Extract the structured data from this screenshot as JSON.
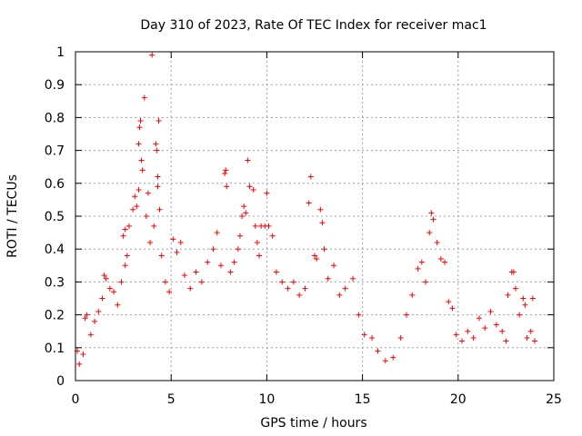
{
  "chart_data": {
    "type": "scatter",
    "title": "Day 310 of 2023, Rate Of TEC Index for receiver mac1",
    "xlabel": "GPS time / hours",
    "ylabel": "ROTI / TECUs",
    "xlim": [
      0,
      25
    ],
    "ylim": [
      0,
      1
    ],
    "xticks": [
      "0",
      "5",
      "10",
      "15",
      "20",
      "25"
    ],
    "yticks": [
      "0",
      "0.1",
      "0.2",
      "0.3",
      "0.4",
      "0.5",
      "0.6",
      "0.7",
      "0.8",
      "0.9",
      "1"
    ],
    "grid": true,
    "marker": "+",
    "color": "#ff0000",
    "series": [
      {
        "name": "ROTI",
        "points": [
          [
            0.1,
            0.09
          ],
          [
            0.2,
            0.05
          ],
          [
            0.4,
            0.08
          ],
          [
            0.5,
            0.19
          ],
          [
            0.6,
            0.2
          ],
          [
            0.8,
            0.14
          ],
          [
            1.0,
            0.18
          ],
          [
            1.2,
            0.21
          ],
          [
            1.4,
            0.25
          ],
          [
            1.5,
            0.32
          ],
          [
            1.6,
            0.31
          ],
          [
            1.8,
            0.28
          ],
          [
            2.0,
            0.27
          ],
          [
            2.2,
            0.23
          ],
          [
            2.4,
            0.3
          ],
          [
            2.6,
            0.35
          ],
          [
            2.5,
            0.44
          ],
          [
            2.6,
            0.46
          ],
          [
            2.7,
            0.38
          ],
          [
            2.8,
            0.47
          ],
          [
            3.0,
            0.52
          ],
          [
            3.1,
            0.56
          ],
          [
            3.2,
            0.53
          ],
          [
            3.3,
            0.58
          ],
          [
            3.3,
            0.72
          ],
          [
            3.35,
            0.77
          ],
          [
            3.4,
            0.79
          ],
          [
            3.45,
            0.67
          ],
          [
            3.5,
            0.64
          ],
          [
            3.6,
            0.86
          ],
          [
            3.7,
            0.5
          ],
          [
            3.8,
            0.57
          ],
          [
            3.9,
            0.42
          ],
          [
            4.0,
            0.99
          ],
          [
            4.1,
            0.47
          ],
          [
            4.2,
            0.72
          ],
          [
            4.25,
            0.7
          ],
          [
            4.3,
            0.62
          ],
          [
            4.3,
            0.59
          ],
          [
            4.35,
            0.79
          ],
          [
            4.4,
            0.52
          ],
          [
            4.5,
            0.38
          ],
          [
            4.7,
            0.3
          ],
          [
            4.9,
            0.27
          ],
          [
            5.1,
            0.43
          ],
          [
            5.3,
            0.39
          ],
          [
            5.5,
            0.42
          ],
          [
            5.7,
            0.32
          ],
          [
            6.0,
            0.28
          ],
          [
            6.3,
            0.33
          ],
          [
            6.6,
            0.3
          ],
          [
            6.9,
            0.36
          ],
          [
            7.2,
            0.4
          ],
          [
            7.4,
            0.45
          ],
          [
            7.6,
            0.35
          ],
          [
            7.8,
            0.63
          ],
          [
            7.85,
            0.64
          ],
          [
            7.9,
            0.59
          ],
          [
            8.1,
            0.33
          ],
          [
            8.3,
            0.36
          ],
          [
            8.5,
            0.4
          ],
          [
            8.6,
            0.44
          ],
          [
            8.7,
            0.5
          ],
          [
            8.8,
            0.53
          ],
          [
            8.9,
            0.51
          ],
          [
            9.0,
            0.67
          ],
          [
            9.1,
            0.59
          ],
          [
            9.3,
            0.58
          ],
          [
            9.4,
            0.47
          ],
          [
            9.5,
            0.42
          ],
          [
            9.6,
            0.38
          ],
          [
            9.7,
            0.47
          ],
          [
            9.9,
            0.47
          ],
          [
            10.0,
            0.57
          ],
          [
            10.1,
            0.47
          ],
          [
            10.3,
            0.44
          ],
          [
            10.5,
            0.33
          ],
          [
            10.8,
            0.3
          ],
          [
            11.1,
            0.28
          ],
          [
            11.4,
            0.3
          ],
          [
            11.7,
            0.26
          ],
          [
            12.0,
            0.28
          ],
          [
            12.2,
            0.54
          ],
          [
            12.3,
            0.62
          ],
          [
            12.5,
            0.38
          ],
          [
            12.6,
            0.37
          ],
          [
            12.8,
            0.52
          ],
          [
            12.9,
            0.48
          ],
          [
            13.0,
            0.4
          ],
          [
            13.2,
            0.31
          ],
          [
            13.5,
            0.35
          ],
          [
            13.8,
            0.26
          ],
          [
            14.1,
            0.28
          ],
          [
            14.5,
            0.31
          ],
          [
            14.8,
            0.2
          ],
          [
            15.1,
            0.14
          ],
          [
            15.5,
            0.13
          ],
          [
            15.8,
            0.09
          ],
          [
            16.2,
            0.06
          ],
          [
            16.6,
            0.07
          ],
          [
            17.0,
            0.13
          ],
          [
            17.3,
            0.2
          ],
          [
            17.6,
            0.26
          ],
          [
            17.9,
            0.34
          ],
          [
            18.1,
            0.36
          ],
          [
            18.3,
            0.3
          ],
          [
            18.5,
            0.45
          ],
          [
            18.6,
            0.51
          ],
          [
            18.7,
            0.49
          ],
          [
            18.9,
            0.42
          ],
          [
            19.1,
            0.37
          ],
          [
            19.3,
            0.36
          ],
          [
            19.5,
            0.24
          ],
          [
            19.7,
            0.22
          ],
          [
            19.9,
            0.14
          ],
          [
            20.2,
            0.12
          ],
          [
            20.5,
            0.15
          ],
          [
            20.8,
            0.13
          ],
          [
            21.1,
            0.19
          ],
          [
            21.4,
            0.16
          ],
          [
            21.7,
            0.21
          ],
          [
            22.0,
            0.17
          ],
          [
            22.3,
            0.15
          ],
          [
            22.5,
            0.12
          ],
          [
            22.6,
            0.26
          ],
          [
            22.8,
            0.33
          ],
          [
            22.9,
            0.33
          ],
          [
            23.0,
            0.28
          ],
          [
            23.2,
            0.2
          ],
          [
            23.4,
            0.25
          ],
          [
            23.5,
            0.23
          ],
          [
            23.6,
            0.13
          ],
          [
            23.8,
            0.15
          ],
          [
            23.9,
            0.25
          ],
          [
            24.0,
            0.12
          ]
        ]
      }
    ]
  }
}
